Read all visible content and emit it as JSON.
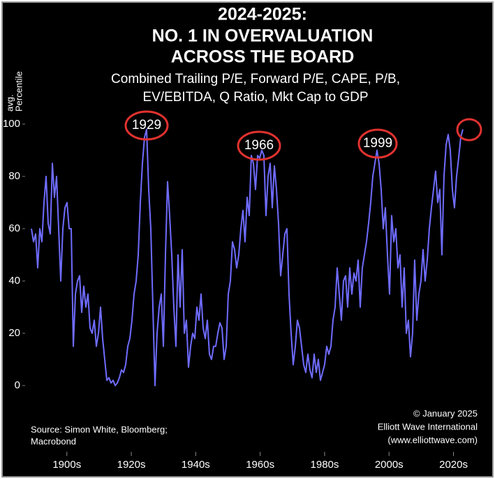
{
  "chart_data": {
    "type": "line",
    "title": [
      "2024-2025:",
      "NO. 1 IN OVERVALUATION",
      "ACROSS THE BOARD"
    ],
    "subtitle": [
      "Combined Trailing P/E, Forward P/E, CAPE, P/B,",
      "EV/EBITDA, Q Ratio, Mkt Cap to GDP"
    ],
    "y_label": [
      "avg.",
      "Percentile"
    ],
    "annotations": [
      "1929",
      "1966",
      "1999"
    ],
    "source": [
      "Source: Simon White, Bloomberg;",
      "Macrobond"
    ],
    "credit": [
      "© January 2025",
      "Elliott Wave International",
      "(www.elliottwave.com)"
    ],
    "color": "#6f6cff",
    "annotation_color": "#e0322f",
    "xlim": [
      1893,
      2035
    ],
    "ylim": [
      -6,
      104
    ],
    "xticks": [
      {
        "value": 1905,
        "label": "1900s"
      },
      {
        "value": 1925,
        "label": "1920s"
      },
      {
        "value": 1945,
        "label": "1940s"
      },
      {
        "value": 1965,
        "label": "1960s"
      },
      {
        "value": 1985,
        "label": "1980s"
      },
      {
        "value": 2005,
        "label": "2000s"
      },
      {
        "value": 2025,
        "label": "2020s"
      }
    ],
    "yticks": [
      0,
      20,
      40,
      60,
      80,
      100
    ],
    "grid": false,
    "x": [
      1894,
      1894.65,
      1895.3,
      1895.95,
      1896.6,
      1897.25,
      1897.9,
      1898.55,
      1899.2,
      1899.85,
      1900.5,
      1901.15,
      1901.8,
      1902.45,
      1903.1,
      1903.75,
      1904.4,
      1905.05,
      1905.7,
      1906.35,
      1907,
      1907.65,
      1908.3,
      1908.95,
      1909.6,
      1910.25,
      1910.9,
      1911.55,
      1912.2,
      1912.85,
      1913.5,
      1914.15,
      1914.8,
      1915.45,
      1916.1,
      1916.75,
      1917.4,
      1918.05,
      1918.7,
      1919.35,
      1920,
      1920.65,
      1921.3,
      1921.95,
      1922.6,
      1923.25,
      1923.9,
      1924.55,
      1925.2,
      1925.85,
      1926.5,
      1927.15,
      1927.8,
      1928.45,
      1929.1,
      1929.75,
      1930.4,
      1931.05,
      1931.7,
      1932.35,
      1933,
      1933.65,
      1934.3,
      1934.95,
      1935.6,
      1936.25,
      1936.9,
      1937.55,
      1938.2,
      1938.85,
      1939.5,
      1940.15,
      1940.8,
      1941.45,
      1942.1,
      1942.75,
      1943.4,
      1944.05,
      1944.7,
      1945.35,
      1946,
      1946.65,
      1947.3,
      1947.95,
      1948.6,
      1949.25,
      1949.9,
      1950.55,
      1951.2,
      1951.85,
      1952.5,
      1953.15,
      1953.8,
      1954.45,
      1955.1,
      1955.75,
      1956.4,
      1957.05,
      1957.7,
      1958.35,
      1959,
      1959.65,
      1960.3,
      1960.95,
      1961.6,
      1962.25,
      1962.9,
      1963.55,
      1964.2,
      1964.85,
      1965.5,
      1966.15,
      1966.8,
      1967.45,
      1968.1,
      1968.75,
      1969.4,
      1970.05,
      1970.7,
      1971.35,
      1972,
      1972.65,
      1973.3,
      1973.95,
      1974.6,
      1975.25,
      1975.9,
      1976.55,
      1977.2,
      1977.85,
      1978.5,
      1979.15,
      1979.8,
      1980.45,
      1981.1,
      1981.75,
      1982.4,
      1983.05,
      1983.7,
      1984.35,
      1985,
      1985.65,
      1986.3,
      1986.95,
      1987.6,
      1988.25,
      1988.9,
      1989.55,
      1990.2,
      1990.85,
      1991.5,
      1992.15,
      1992.8,
      1993.45,
      1994.1,
      1994.75,
      1995.4,
      1996.05,
      1996.7,
      1997.35,
      1998,
      1998.65,
      1999.3,
      1999.95,
      2000.6,
      2001.25,
      2001.9,
      2002.55,
      2003.2,
      2003.85,
      2004.5,
      2005.15,
      2005.8,
      2006.45,
      2007.1,
      2007.75,
      2008.4,
      2009.05,
      2009.7,
      2010.35,
      2011,
      2011.65,
      2012.3,
      2012.95,
      2013.6,
      2014.25,
      2014.9,
      2015.55,
      2016.2,
      2016.85,
      2017.5,
      2018.15,
      2018.8,
      2019.45,
      2020.1,
      2020.75,
      2021.4,
      2022.05,
      2022.7,
      2023.35,
      2024,
      2024.65,
      2025.3,
      2025.95,
      2026.6,
      2027.25,
      2027.9
    ],
    "values": [
      60,
      55,
      58,
      45,
      60,
      55,
      70,
      80,
      62,
      58,
      85,
      72,
      80,
      60,
      40,
      60,
      68,
      70,
      60,
      60,
      15,
      35,
      40,
      42,
      28,
      38,
      30,
      35,
      22,
      20,
      25,
      15,
      20,
      30,
      18,
      10,
      2,
      3,
      1,
      2,
      0,
      1,
      3,
      6,
      5,
      8,
      15,
      18,
      25,
      35,
      40,
      50,
      70,
      85,
      95,
      98,
      75,
      60,
      30,
      0,
      20,
      30,
      35,
      15,
      50,
      78,
      65,
      50,
      30,
      15,
      50,
      30,
      52,
      20,
      25,
      7,
      15,
      20,
      18,
      30,
      25,
      35,
      22,
      18,
      25,
      12,
      10,
      15,
      15,
      20,
      24,
      22,
      10,
      15,
      35,
      40,
      55,
      52,
      45,
      50,
      60,
      67,
      55,
      72,
      65,
      88,
      85,
      75,
      88,
      87,
      90,
      88,
      65,
      80,
      85,
      68,
      84,
      75,
      62,
      42,
      50,
      58,
      60,
      35,
      20,
      8,
      15,
      25,
      22,
      15,
      8,
      5,
      12,
      6,
      3,
      12,
      5,
      10,
      2,
      5,
      8,
      15,
      12,
      15,
      25,
      30,
      45,
      35,
      25,
      40,
      42,
      30,
      45,
      35,
      43,
      40,
      48,
      30,
      45,
      50,
      55,
      62,
      70,
      80,
      85,
      90,
      85,
      75,
      60,
      68,
      50,
      35,
      65,
      55,
      60,
      45,
      50,
      30,
      45,
      20,
      25,
      11,
      20,
      48,
      25,
      35,
      40,
      52,
      40,
      48,
      60,
      68,
      75,
      82,
      70,
      75,
      50,
      80,
      92,
      96,
      90,
      75,
      68,
      80,
      87,
      95,
      98
    ]
  }
}
